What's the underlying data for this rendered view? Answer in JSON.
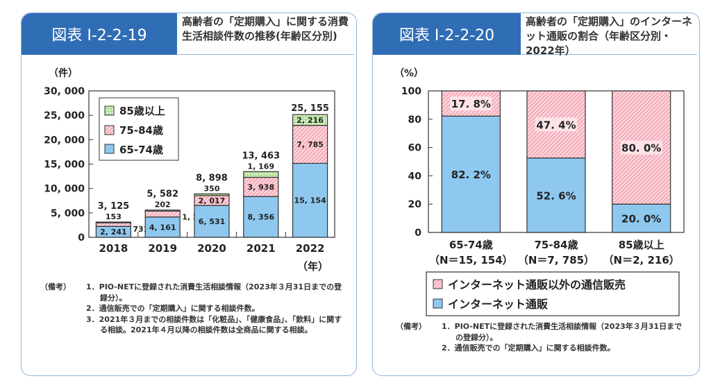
{
  "left": {
    "figure_number": "図表 I-2-2-19",
    "title": "高齢者の「定期購入」に関する消費生活相談件数の推移(年齢区分別)",
    "notes_label": "（備考）",
    "notes": [
      "1．PIO-NETに登録された消費生活相談情報（2023年３月31日までの登録分）。",
      "2．通信販売での「定期購入」に関する相談件数。",
      "3．2021年３月までの相談件数は「化粧品」、「健康食品」、「飲料」に関する相談。2021年４月以降の相談件数は全商品に関する相談。"
    ]
  },
  "right": {
    "figure_number": "図表 I-2-2-20",
    "title": "高齢者の「定期購入」のインターネット通販の割合（年齢区分別・2022年）",
    "notes_label": "（備考）",
    "notes": [
      "1．PIO-NETに登録された消費生活相談情報（2023年３月31日までの登録分）。",
      "2．通信販売での「定期購入」に関する相談件数。"
    ]
  },
  "chart_data": [
    {
      "type": "bar",
      "stacked": true,
      "ylabel": "（件）",
      "xlabel": "（年）",
      "ylim": [
        0,
        30000
      ],
      "yticks": [
        "0",
        "5, 000",
        "10, 000",
        "15, 000",
        "20, 000",
        "25, 000",
        "30, 000"
      ],
      "categories": [
        "2018",
        "2019",
        "2020",
        "2021",
        "2022"
      ],
      "series": [
        {
          "name": "65-74歳",
          "values": [
            2241,
            4161,
            6531,
            8356,
            15154
          ],
          "labels": [
            "2, 241",
            "4, 161",
            "6, 531",
            "8, 356",
            "15, 154"
          ],
          "color": "#8ec8ef"
        },
        {
          "name": "75-84歳",
          "values": [
            731,
            1219,
            2017,
            3938,
            7785
          ],
          "labels": [
            "731",
            "1, 219",
            "2, 017",
            "3, 938",
            "7, 785"
          ],
          "color": "#f5a7b6"
        },
        {
          "name": "85歳以上",
          "values": [
            153,
            202,
            350,
            1169,
            2216
          ],
          "labels": [
            "153",
            "202",
            "350",
            "1, 169",
            "2, 216"
          ],
          "color": "#b5e09b"
        }
      ],
      "totals": [
        "3, 125",
        "5, 582",
        "8, 898",
        "13, 463",
        "25, 155"
      ],
      "legend_order": [
        "85歳以上",
        "75-84歳",
        "65-74歳"
      ],
      "legend": "top-left",
      "grid": false
    },
    {
      "type": "bar",
      "stacked": true,
      "percent": true,
      "ylabel": "（%）",
      "ylim": [
        0,
        100
      ],
      "yticks": [
        "0",
        "20",
        "40",
        "60",
        "80",
        "100"
      ],
      "categories": [
        "65-74歳",
        "75-84歳",
        "85歳以上"
      ],
      "category_n": [
        "（N＝15, 154）",
        "（N＝7, 785）",
        "（N＝2, 216）"
      ],
      "series": [
        {
          "name": "インターネット通販",
          "values": [
            82.2,
            52.6,
            20.0
          ],
          "labels": [
            "82. 2%",
            "52. 6%",
            "20. 0%"
          ],
          "color": "#8ec8ef"
        },
        {
          "name": "インターネット通販以外の通信販売",
          "values": [
            17.8,
            47.4,
            80.0
          ],
          "labels": [
            "17. 8%",
            "47. 4%",
            "80. 0%"
          ],
          "color": "#f5a7b6"
        }
      ],
      "legend_order": [
        "インターネット通販以外の通信販売",
        "インターネット通販"
      ],
      "legend": "bottom",
      "grid": false
    }
  ]
}
